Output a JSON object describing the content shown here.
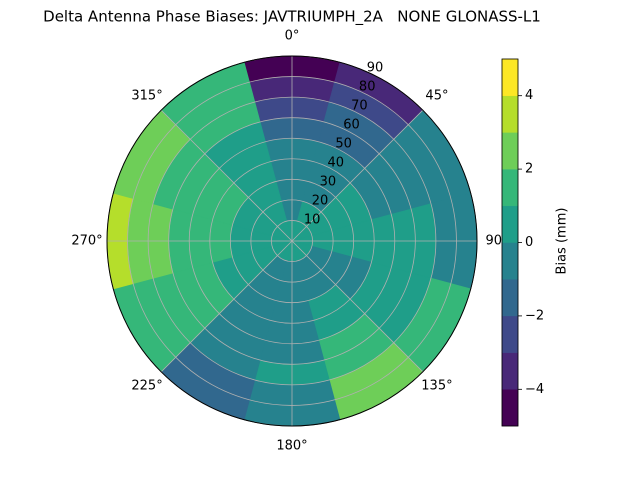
{
  "chart_data": {
    "type": "polar-contour",
    "title": "Delta Antenna Phase Biases: JAVTRIUMPH_2A   NONE GLONASS-L1",
    "azimuth": [
      0,
      30,
      60,
      90,
      120,
      150,
      180,
      210,
      240,
      270,
      300,
      330
    ],
    "zenith": [
      5,
      15,
      25,
      35,
      45,
      55,
      65,
      75,
      85
    ],
    "values": [
      [
        0.3,
        -0.3,
        -0.5,
        -0.5,
        -0.8,
        -1.5,
        -2.5,
        -3.5,
        -4.5
      ],
      [
        0.3,
        0.3,
        -0.3,
        -0.5,
        -0.8,
        -1.2,
        -1.5,
        -2.5,
        -3.2
      ],
      [
        0.5,
        0.5,
        0.5,
        0.3,
        -0.3,
        -0.5,
        -0.8,
        -0.8,
        -0.5
      ],
      [
        0.5,
        0.5,
        0.5,
        0.5,
        0.3,
        0.2,
        0.2,
        -0.3,
        -0.5
      ],
      [
        0.3,
        -0.3,
        -0.5,
        -0.5,
        0.5,
        0.5,
        0.8,
        1.2,
        1.5
      ],
      [
        0.3,
        -0.3,
        -0.5,
        0.5,
        0.8,
        1.2,
        1.5,
        2.2,
        2.5
      ],
      [
        0.3,
        -0.3,
        -0.5,
        -0.5,
        -0.5,
        -0.5,
        0.5,
        -0.5,
        -0.8
      ],
      [
        0.3,
        -0.3,
        -0.5,
        -0.5,
        -0.5,
        -0.8,
        -0.8,
        -1.2,
        -1.5
      ],
      [
        0.5,
        0.5,
        0.5,
        0.8,
        1.2,
        1.3,
        1.5,
        1.5,
        1.5
      ],
      [
        0.5,
        0.5,
        0.8,
        1.2,
        1.5,
        1.8,
        2.2,
        2.5,
        3.2
      ],
      [
        0.5,
        0.5,
        0.8,
        1.2,
        1.3,
        1.5,
        1.8,
        2.2,
        2.5
      ],
      [
        0.5,
        0.3,
        0.2,
        0.5,
        0.5,
        0.8,
        1.2,
        1.5,
        1.5
      ]
    ],
    "rlim": [
      0,
      90
    ],
    "rticks": [
      10,
      20,
      30,
      40,
      50,
      60,
      70,
      80,
      90
    ],
    "thetaticks": [
      {
        "value": 0,
        "label": "0°"
      },
      {
        "value": 45,
        "label": "45°"
      },
      {
        "value": 90,
        "label": "90°"
      },
      {
        "value": 135,
        "label": "135°"
      },
      {
        "value": 180,
        "label": "180°"
      },
      {
        "value": 225,
        "label": "225°"
      },
      {
        "value": 270,
        "label": "270°"
      },
      {
        "value": 315,
        "label": "315°"
      }
    ],
    "grid": true,
    "levels": [
      -5,
      -4,
      -3,
      -2,
      -1,
      0,
      1,
      2,
      3,
      4,
      5
    ],
    "colors": [
      "#440154",
      "#482878",
      "#3e4989",
      "#31688e",
      "#26828e",
      "#1f9e89",
      "#35b779",
      "#6ece58",
      "#b5de2b",
      "#fde725"
    ],
    "colorbar_label": "Bias (mm)",
    "colorbar_ticks": [
      {
        "value": -4,
        "label": "−4"
      },
      {
        "value": -2,
        "label": "−2"
      },
      0,
      2,
      4
    ]
  }
}
